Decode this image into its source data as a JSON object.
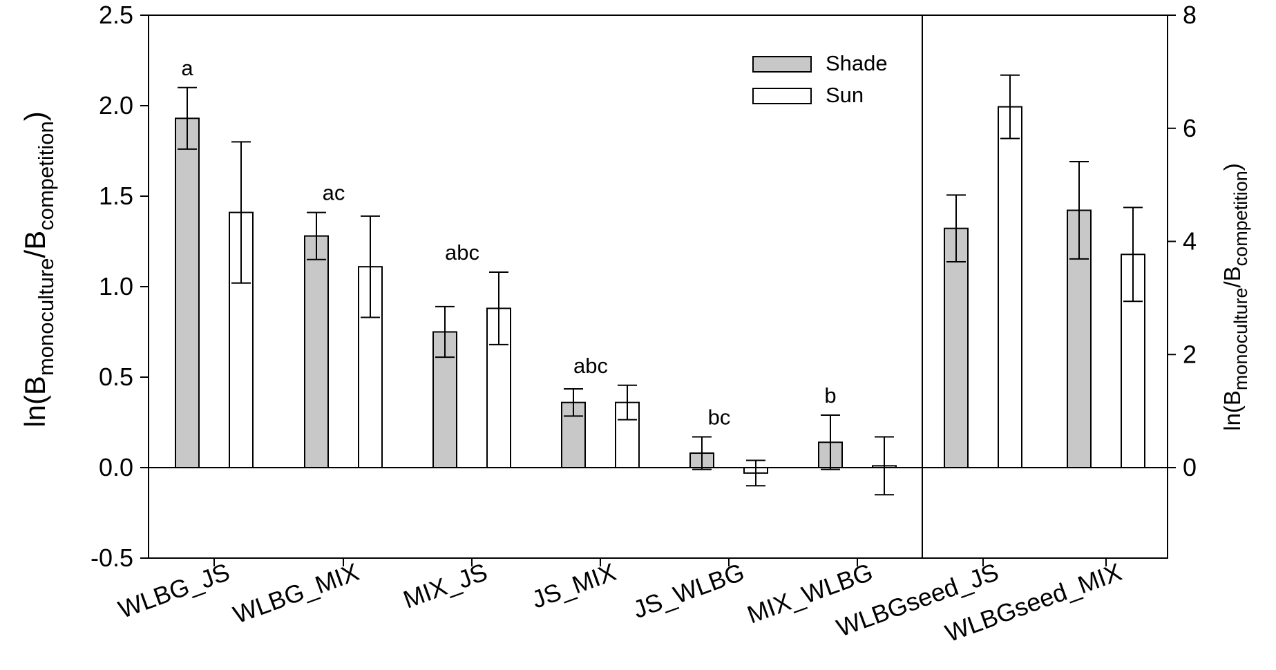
{
  "chart_data": {
    "type": "bar",
    "categories": [
      "WLBG_JS",
      "WLBG_MIX",
      "MIX_JS",
      "JS_MIX",
      "JS_WLBG",
      "MIX_WLBG",
      "WLBGseed_JS",
      "WLBGseed_MIX"
    ],
    "series": [
      {
        "name": "Shade",
        "color": "#c8c8c8",
        "values": [
          1.93,
          1.28,
          0.75,
          0.36,
          0.08,
          0.14,
          4.23,
          4.55
        ],
        "error": [
          0.17,
          0.13,
          0.14,
          0.075,
          0.09,
          0.15,
          0.59,
          0.86
        ]
      },
      {
        "name": "Sun",
        "color": "#ffffff",
        "values": [
          1.41,
          1.11,
          0.88,
          0.36,
          -0.03,
          0.01,
          6.38,
          3.77
        ],
        "error": [
          0.39,
          0.28,
          0.2,
          0.095,
          0.07,
          0.16,
          0.56,
          0.83
        ]
      }
    ],
    "axis_assignment": [
      "left",
      "left",
      "left",
      "left",
      "left",
      "left",
      "right",
      "right"
    ],
    "significance_labels": [
      "a",
      "ac",
      "abc",
      "abc",
      "bc",
      "b",
      "",
      ""
    ],
    "left_axis": {
      "label_main": "ln(B",
      "label_sub1": "monoculture",
      "label_mid": "/B",
      "label_sub2": "competition",
      "label_end": ")",
      "ylim": [
        -0.5,
        2.5
      ],
      "ticks": [
        "-0.5",
        "0.0",
        "0.5",
        "1.0",
        "1.5",
        "2.0",
        "2.5"
      ]
    },
    "right_axis": {
      "label_main": "ln(B",
      "label_sub1": "monoculture",
      "label_mid": "/B",
      "label_sub2": "competition",
      "label_end": ")",
      "ylim": [
        -1.6,
        8
      ],
      "ticks": [
        "0",
        "2",
        "4",
        "6",
        "8"
      ]
    },
    "legend": {
      "placement": "top-center-right",
      "entries": [
        "Shade",
        "Sun"
      ]
    },
    "grid": false
  }
}
